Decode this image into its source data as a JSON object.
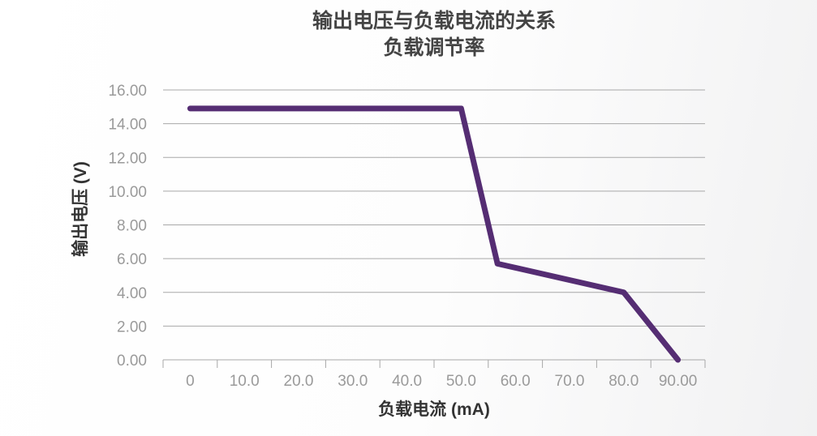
{
  "chart_data": {
    "type": "line",
    "title": "输出电压与负载电流的关系",
    "subtitle": "负载调节率",
    "xlabel": "负载电流 (mA)",
    "ylabel": "输出电压 (V)",
    "x_tick_labels": [
      "0",
      "10.0",
      "20.0",
      "30.0",
      "40.0",
      "50.0",
      "60.0",
      "70.0",
      "80.0",
      "90.00"
    ],
    "y_tick_labels": [
      "0.00",
      "2.00",
      "4.00",
      "6.00",
      "8.00",
      "10.00",
      "12.00",
      "14.00",
      "16.00"
    ],
    "ylim": [
      0,
      16
    ],
    "xlim": [
      0,
      90
    ],
    "grid": "horizontal",
    "series": [
      {
        "color": "#552d73",
        "points": [
          [
            0,
            14.9
          ],
          [
            50,
            14.9
          ],
          [
            56.7,
            5.7
          ],
          [
            80,
            4.0
          ],
          [
            90,
            0
          ]
        ]
      }
    ]
  }
}
